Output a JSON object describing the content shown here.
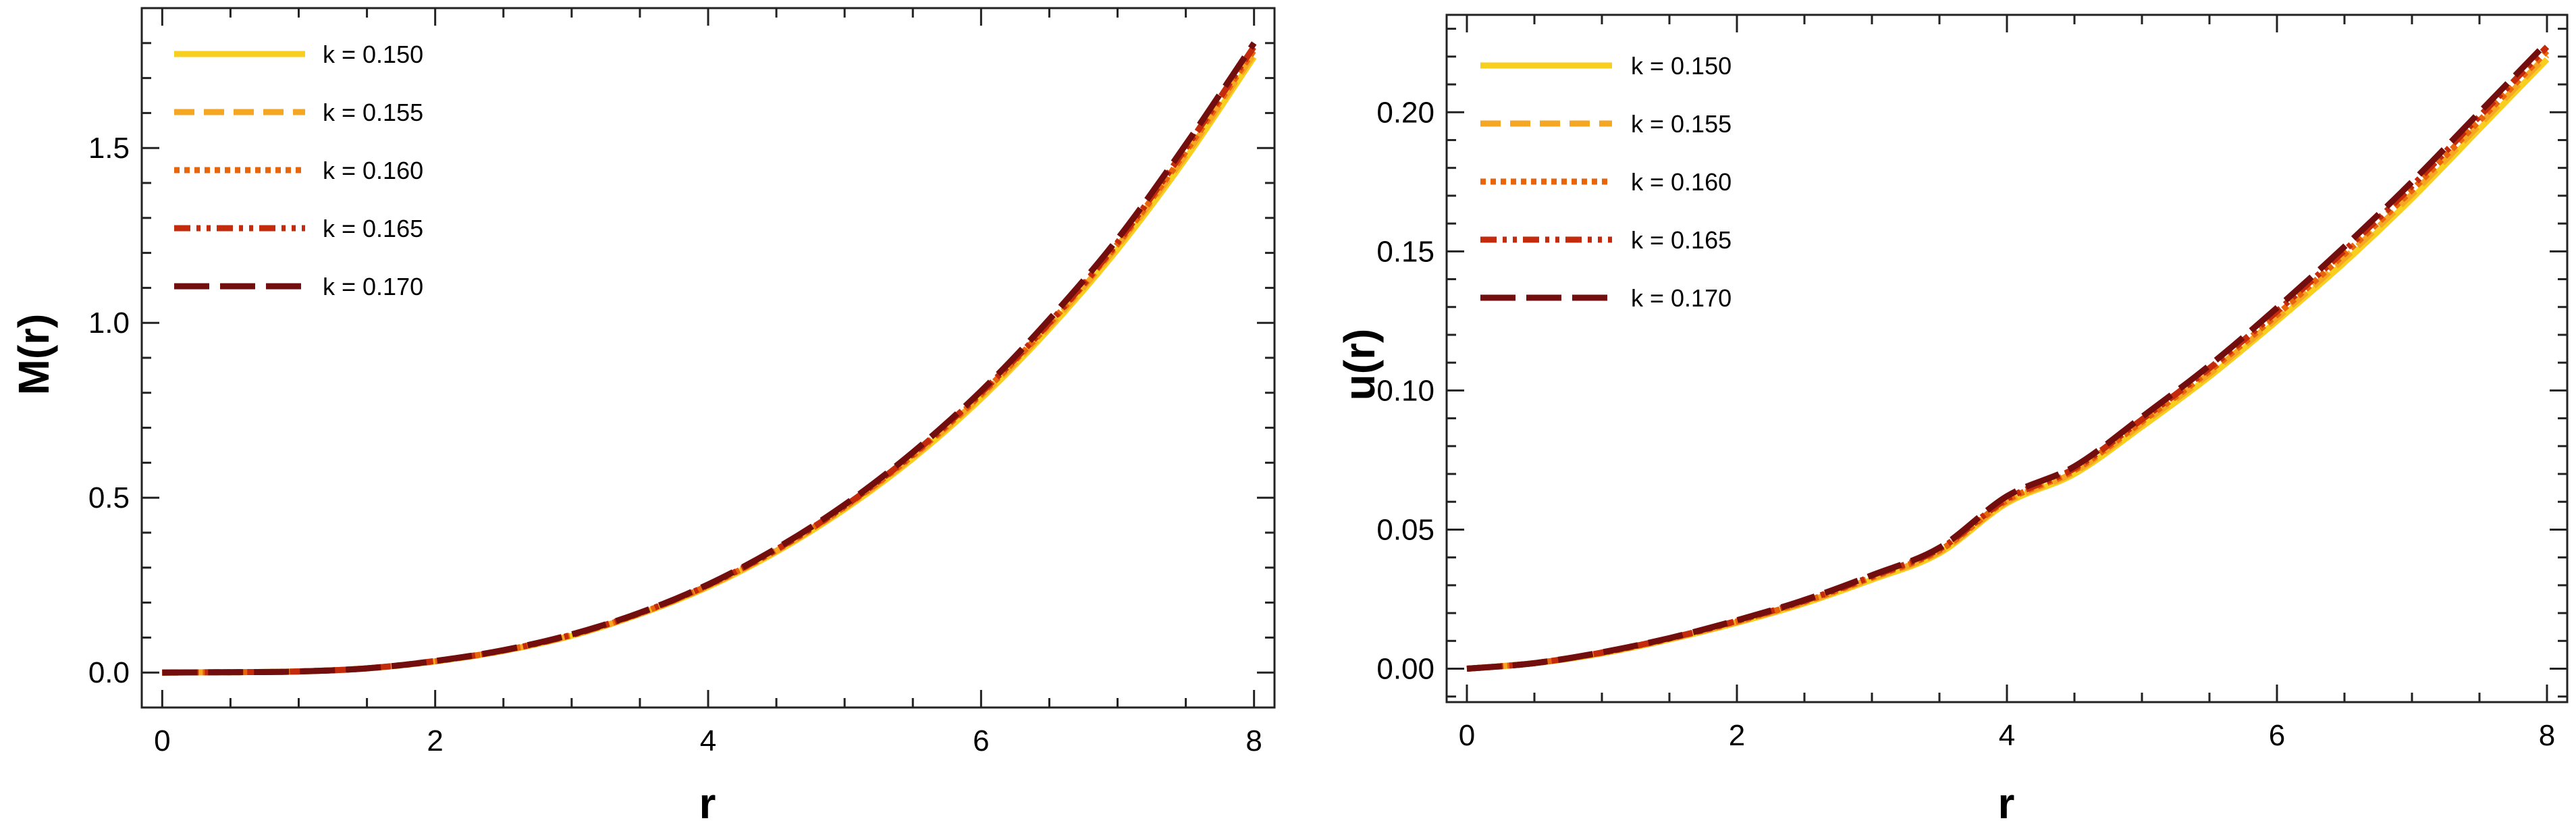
{
  "chart_data": [
    {
      "type": "line",
      "xlabel": "r",
      "ylabel": "M(r)",
      "xlim": [
        -0.15,
        8.15
      ],
      "ylim": [
        -0.1,
        1.9
      ],
      "xticks": [
        0,
        2,
        4,
        6,
        8
      ],
      "xtick_labels": [
        "0",
        "2",
        "4",
        "6",
        "8"
      ],
      "yticks": [
        0.0,
        0.5,
        1.0,
        1.5
      ],
      "ytick_labels": [
        "0.0",
        "0.5",
        "1.0",
        "1.5"
      ],
      "grid": false,
      "legend_position": "top-left",
      "x": [
        0,
        0.5,
        1,
        1.5,
        2,
        2.5,
        3,
        3.5,
        4,
        4.5,
        5,
        5.5,
        6,
        6.5,
        7,
        7.5,
        8
      ],
      "series": [
        {
          "name": "k = 0.150",
          "color": "#F8CF1E",
          "dash": "solid",
          "values": [
            0,
            0.001,
            0.003,
            0.012,
            0.032,
            0.062,
            0.105,
            0.167,
            0.245,
            0.345,
            0.467,
            0.612,
            0.783,
            0.983,
            1.21,
            1.47,
            1.76
          ]
        },
        {
          "name": "k = 0.155",
          "color": "#F5A623",
          "dash": "dashed",
          "values": [
            0,
            0.001,
            0.003,
            0.012,
            0.032,
            0.062,
            0.106,
            0.168,
            0.247,
            0.348,
            0.471,
            0.617,
            0.79,
            0.99,
            1.22,
            1.48,
            1.77
          ]
        },
        {
          "name": "k = 0.160",
          "color": "#E8650C",
          "dash": "dotted",
          "values": [
            0,
            0.001,
            0.003,
            0.012,
            0.032,
            0.063,
            0.107,
            0.169,
            0.249,
            0.35,
            0.474,
            0.621,
            0.795,
            0.997,
            1.225,
            1.49,
            1.78
          ]
        },
        {
          "name": "k = 0.165",
          "color": "#C42A0C",
          "dash": "dashdotdot",
          "values": [
            0,
            0.001,
            0.003,
            0.012,
            0.033,
            0.063,
            0.108,
            0.17,
            0.25,
            0.352,
            0.476,
            0.625,
            0.8,
            1.0,
            1.23,
            1.5,
            1.79
          ]
        },
        {
          "name": "k = 0.170",
          "color": "#720E0E",
          "dash": "longdash",
          "values": [
            0,
            0.001,
            0.003,
            0.012,
            0.033,
            0.064,
            0.109,
            0.171,
            0.252,
            0.355,
            0.48,
            0.63,
            0.805,
            1.01,
            1.24,
            1.51,
            1.8
          ]
        }
      ]
    },
    {
      "type": "line",
      "xlabel": "r",
      "ylabel": "u(r)",
      "xlim": [
        -0.15,
        8.15
      ],
      "ylim": [
        -0.012,
        0.235
      ],
      "xticks": [
        0,
        2,
        4,
        6,
        8
      ],
      "xtick_labels": [
        "0",
        "2",
        "4",
        "6",
        "8"
      ],
      "yticks": [
        0.0,
        0.05,
        0.1,
        0.15,
        0.2
      ],
      "ytick_labels": [
        "0.00",
        "0.05",
        "0.10",
        "0.15",
        "0.20"
      ],
      "grid": false,
      "legend_position": "top-left",
      "x": [
        0,
        0.5,
        1,
        1.5,
        2,
        2.5,
        3,
        3.5,
        4,
        4.5,
        5,
        5.5,
        6,
        6.5,
        7,
        7.5,
        8
      ],
      "series": [
        {
          "name": "k = 0.150",
          "color": "#F8CF1E",
          "dash": "solid",
          "values": [
            0,
            0.002,
            0.0055,
            0.0105,
            0.0165,
            0.0235,
            0.032,
            0.0415,
            0.0595,
            0.07,
            0.087,
            0.105,
            0.125,
            0.146,
            0.169,
            0.194,
            0.219
          ]
        },
        {
          "name": "k = 0.155",
          "color": "#F5A623",
          "dash": "dashed",
          "values": [
            0,
            0.002,
            0.0056,
            0.0106,
            0.0167,
            0.0238,
            0.0325,
            0.042,
            0.06,
            0.0707,
            0.088,
            0.106,
            0.126,
            0.1475,
            0.1705,
            0.1955,
            0.2205
          ]
        },
        {
          "name": "k = 0.160",
          "color": "#E8650C",
          "dash": "dotted",
          "values": [
            0,
            0.002,
            0.0057,
            0.0108,
            0.017,
            0.0241,
            0.0328,
            0.0425,
            0.0605,
            0.0713,
            0.0888,
            0.107,
            0.1272,
            0.149,
            0.172,
            0.197,
            0.222
          ]
        },
        {
          "name": "k = 0.165",
          "color": "#C42A0C",
          "dash": "dashdotdot",
          "values": [
            0,
            0.002,
            0.0058,
            0.0109,
            0.0172,
            0.0244,
            0.0332,
            0.043,
            0.061,
            0.072,
            0.0896,
            0.108,
            0.1284,
            0.1503,
            0.1735,
            0.1985,
            0.2235
          ]
        },
        {
          "name": "k = 0.170",
          "color": "#720E0E",
          "dash": "longdash",
          "values": [
            0,
            0.002,
            0.0059,
            0.011,
            0.0174,
            0.0247,
            0.0336,
            0.0435,
            0.062,
            0.0727,
            0.0905,
            0.109,
            0.1297,
            0.1517,
            0.175,
            0.2,
            0.225
          ]
        }
      ]
    }
  ]
}
